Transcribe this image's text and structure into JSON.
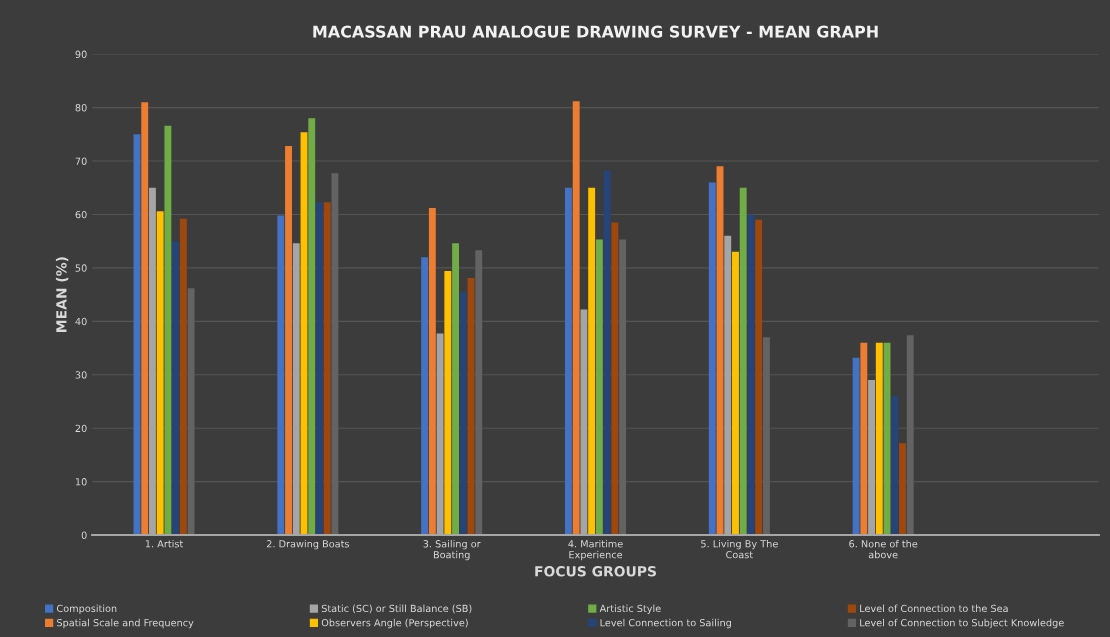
{
  "chart_data": {
    "type": "bar",
    "title": "MACASSAN PRAU ANALOGUE DRAWING SURVEY - MEAN GRAPH",
    "xlabel": "FOCUS GROUPS",
    "ylabel": "MEAN (%)",
    "categories": [
      "1. Artist",
      "2. Drawing Boats",
      "3. Sailing or\nBoating",
      "4. Maritime\nExperience",
      "5. Living By The\nCoast",
      "6. None of the\nabove",
      null
    ],
    "series": [
      {
        "name": "Composition",
        "color": "#4472c4",
        "values": [
          75,
          59.8,
          52,
          65,
          66,
          33.2,
          null
        ]
      },
      {
        "name": "Spatial Scale and Frequency",
        "color": "#ed7d31",
        "values": [
          81,
          72.8,
          61.2,
          81.2,
          69,
          36,
          null
        ]
      },
      {
        "name": "Static (SC) or Still Balance (SB)",
        "color": "#a5a5a5",
        "values": [
          65,
          54.6,
          37.7,
          42.2,
          56,
          29,
          null
        ]
      },
      {
        "name": "Observers Angle (Perspective)",
        "color": "#ffc000",
        "values": [
          60.6,
          75.4,
          49.4,
          65,
          53,
          36,
          null
        ]
      },
      {
        "name": "Artistic Style",
        "color": "#70ad47",
        "values": [
          76.6,
          78,
          54.6,
          55.3,
          65,
          36,
          null
        ]
      },
      {
        "name": "Level Connection to Sailing",
        "color": "#264478",
        "values": [
          55,
          62.3,
          45.5,
          68.2,
          60,
          26,
          null
        ]
      },
      {
        "name": "Level of Connection to the Sea",
        "color": "#9e480e",
        "values": [
          59.2,
          62.3,
          48.1,
          58.5,
          59,
          17.2,
          null
        ]
      },
      {
        "name": "Level of Connection to Subject Knowledge",
        "color": "#636363",
        "values": [
          46.2,
          67.7,
          53.3,
          55.3,
          37,
          37.4,
          null
        ]
      }
    ],
    "ylim": [
      0,
      90
    ],
    "yticks": [
      0,
      10,
      20,
      30,
      40,
      50,
      60,
      70,
      80,
      90
    ],
    "grid": "y",
    "legend": "bottom"
  }
}
